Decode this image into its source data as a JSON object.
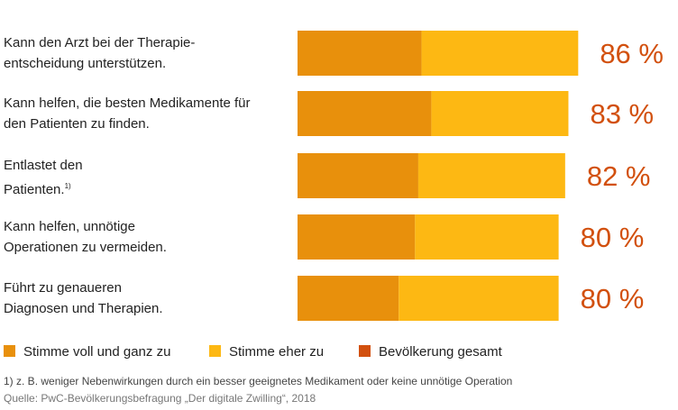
{
  "chart_data": {
    "type": "stacked-bar-horizontal",
    "categories": [
      "Kann den Arzt bei der Therapie-\nentscheidung unterstützen.",
      "Kann helfen, die besten Medikamente für\nden Patienten zu finden.",
      "Entlastet den\nPatienten.",
      "Kann helfen, unnötige\nOperationen zu vermeiden.",
      "Führt zu genaueren\nDiagnosen und Therapien."
    ],
    "series": [
      {
        "name": "Stimme voll und ganz zu",
        "color": "#e8900c",
        "values": [
          38,
          41,
          37,
          36,
          31
        ]
      },
      {
        "name": "Stimme eher zu",
        "color": "#fdb813",
        "values": [
          48,
          42,
          45,
          44,
          49
        ]
      },
      {
        "name": "Bevölkerung gesamt",
        "color": "#d2500e",
        "values": [
          86,
          83,
          82,
          80,
          80
        ],
        "value_labels": [
          "86 %",
          "83 %",
          "82 %",
          "80 %",
          "80 %"
        ]
      }
    ],
    "footnote": {
      "marker": "1)",
      "text": "z. B. weniger Nebenwirkungen durch ein besser geeignetes Medikament oder keine unnötige Operation"
    },
    "source": "Quelle: PwC-Bevölkerungsbefragung „Der digitale Zwilling“, 2018"
  }
}
